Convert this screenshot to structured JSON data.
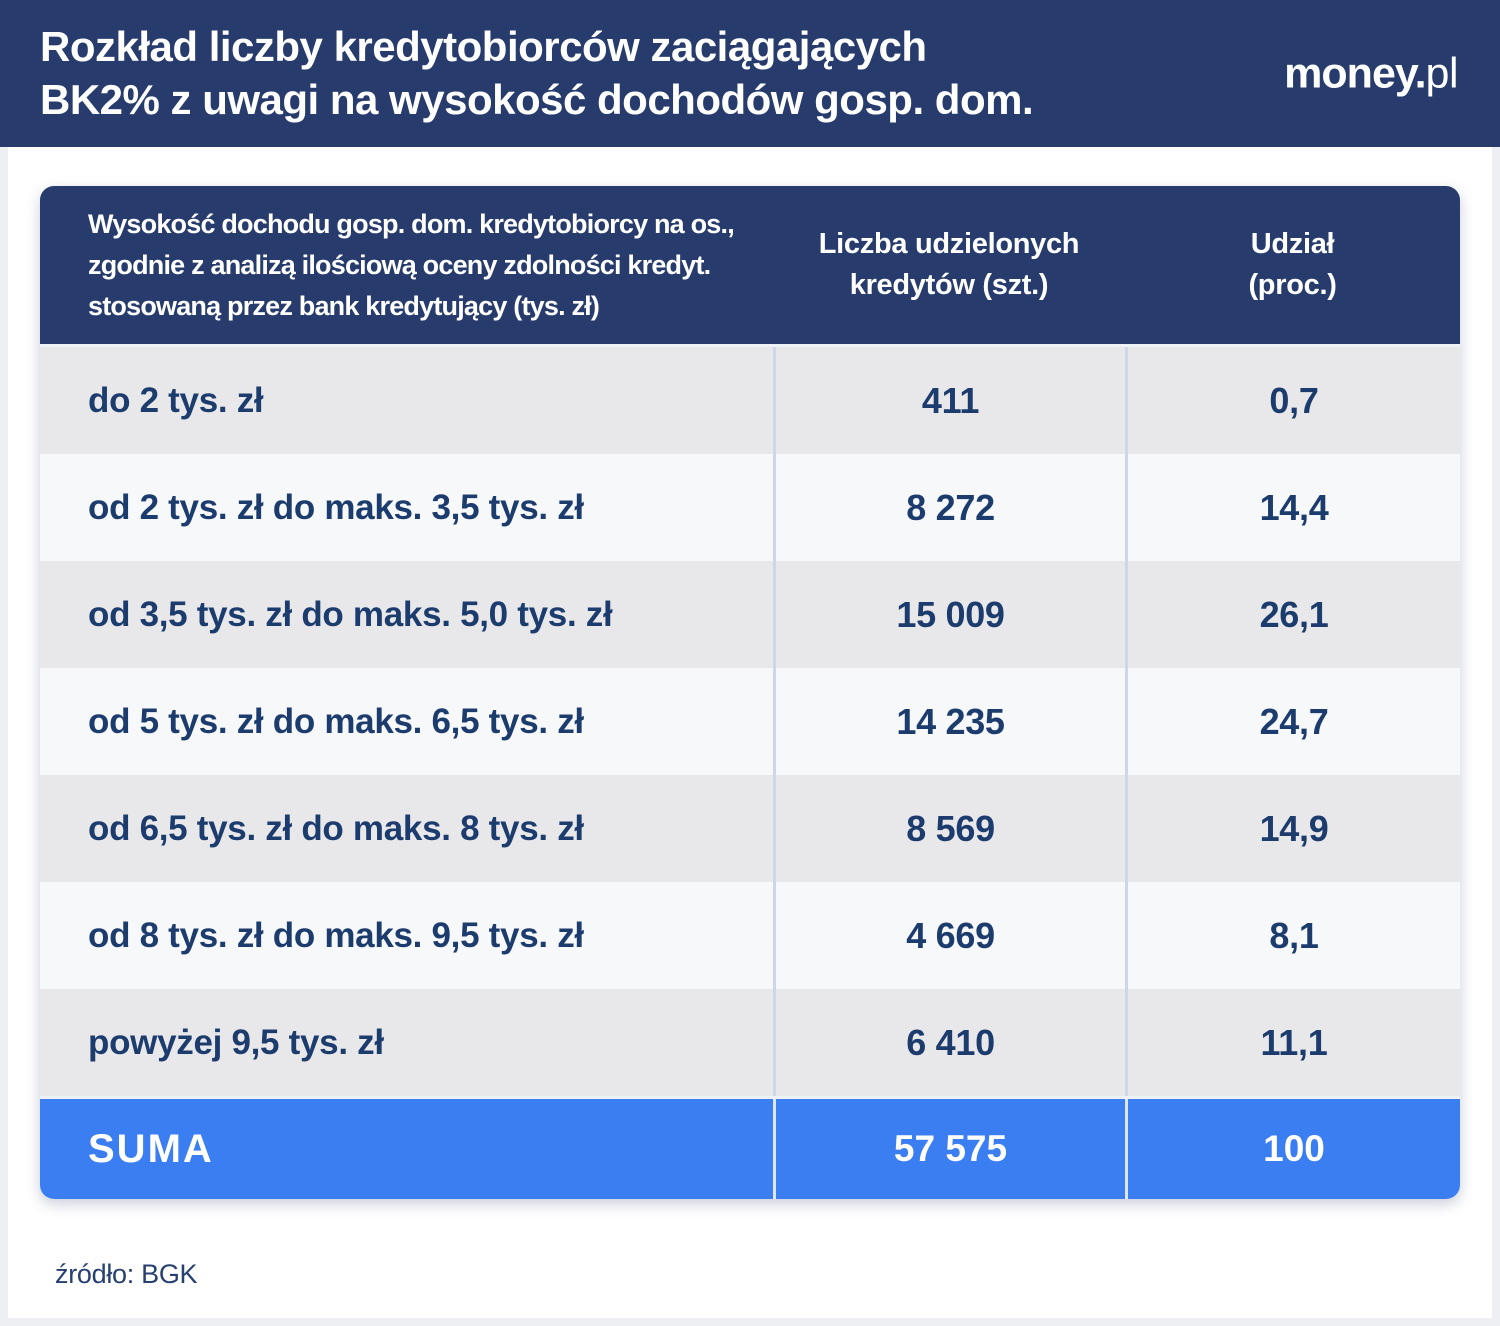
{
  "header": {
    "title_line1": "Rozkład liczby kredytobiorców zaciągających",
    "title_line2": "BK2% z uwagi na wysokość dochodów gosp. dom.",
    "logo_bold": "money.",
    "logo_light": "pl"
  },
  "table": {
    "header": {
      "income_lines": [
        "Wysokość dochodu gosp. dom. kredytobiorcy na os.,",
        "zgodnie z analizą ilościową oceny zdolności kredyt.",
        "stosowaną przez bank kredytujący (tys. zł)"
      ],
      "count_lines": [
        "Liczba udzielonych",
        "kredytów (szt.)"
      ],
      "share_lines": [
        "Udział",
        "(proc.)"
      ]
    },
    "rows": [
      {
        "label": "do 2 tys. zł",
        "count": "411",
        "share": "0,7"
      },
      {
        "label": "od 2 tys. zł do maks. 3,5 tys. zł",
        "count": "8 272",
        "share": "14,4"
      },
      {
        "label": "od 3,5 tys. zł do maks. 5,0 tys. zł",
        "count": "15 009",
        "share": "26,1"
      },
      {
        "label": "od 5 tys. zł do maks. 6,5 tys. zł",
        "count": "14 235",
        "share": "24,7"
      },
      {
        "label": "od 6,5 tys. zł do maks. 8 tys. zł",
        "count": "8 569",
        "share": "14,9"
      },
      {
        "label": "od 8 tys. zł do maks. 9,5 tys. zł",
        "count": "4 669",
        "share": "8,1"
      },
      {
        "label": "powyżej 9,5 tys. zł",
        "count": "6 410",
        "share": "11,1"
      }
    ],
    "total": {
      "label": "SUMA",
      "count": "57 575",
      "share": "100"
    }
  },
  "footer": {
    "source": "źródło: BGK"
  },
  "colors": {
    "navy": "#273c6d",
    "accent_blue": "#3b7ef2",
    "row_gray": "#e8e8ea",
    "row_light": "#f7f8fa",
    "text_navy": "#1d3c6e",
    "divider": "#cdd7e9"
  },
  "chart_data": {
    "type": "table",
    "title": "Rozkład liczby kredytobiorców zaciągających BK2% z uwagi na wysokość dochodów gosp. dom.",
    "columns": [
      "Wysokość dochodu gosp. dom. kredytobiorcy na os., zgodnie z analizą ilościową oceny zdolności kredyt. stosowaną przez bank kredytujący (tys. zł)",
      "Liczba udzielonych kredytów (szt.)",
      "Udział (proc.)"
    ],
    "rows": [
      [
        "do 2 tys. zł",
        411,
        0.7
      ],
      [
        "od 2 tys. zł do maks. 3,5 tys. zł",
        8272,
        14.4
      ],
      [
        "od 3,5 tys. zł do maks. 5,0 tys. zł",
        15009,
        26.1
      ],
      [
        "od 5 tys. zł do maks. 6,5 tys. zł",
        14235,
        24.7
      ],
      [
        "od 6,5 tys. zł do maks. 8 tys. zł",
        8569,
        14.9
      ],
      [
        "od 8 tys. zł do maks. 9,5 tys. zł",
        4669,
        8.1
      ],
      [
        "powyżej 9,5 tys. zł",
        6410,
        11.1
      ]
    ],
    "total": [
      "SUMA",
      57575,
      100
    ],
    "source": "źródło: BGK"
  }
}
